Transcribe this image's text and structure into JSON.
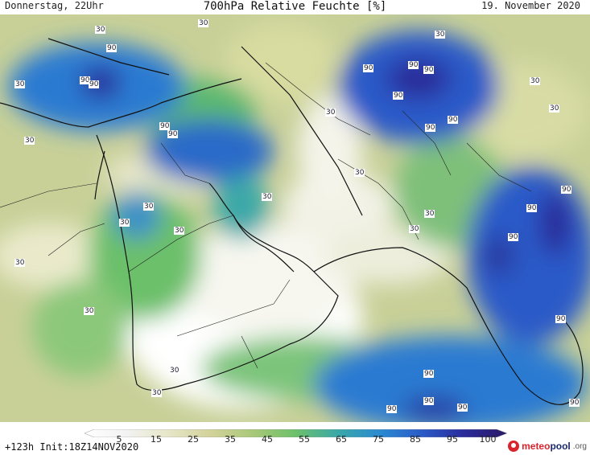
{
  "header": {
    "day_time": "Donnerstag, 22Uhr",
    "title": "700hPa Relative Feuchte [%]",
    "date": "19. November 2020"
  },
  "map": {
    "region": "Middle East / Arabian Peninsula",
    "contour_labels": [
      "30",
      "30",
      "90",
      "90",
      "90",
      "30",
      "30",
      "90",
      "90",
      "30",
      "90",
      "90",
      "30",
      "90",
      "90",
      "90",
      "30",
      "30",
      "30",
      "90",
      "90",
      "30",
      "30",
      "30",
      "90",
      "30",
      "30",
      "30",
      "90",
      "30",
      "30",
      "90",
      "90",
      "90",
      "90",
      "90",
      "90",
      "30",
      "30"
    ]
  },
  "colorbar": {
    "labels": [
      "5",
      "15",
      "25",
      "35",
      "45",
      "55",
      "65",
      "75",
      "85",
      "95",
      "100"
    ],
    "colors": [
      "#ffffff",
      "#f2f2f2",
      "#e6e6c8",
      "#d2d29a",
      "#a8c878",
      "#6cc06a",
      "#3aa8a8",
      "#2a8ad2",
      "#2a5ac8",
      "#2a2a9a",
      "#2a1a66"
    ]
  },
  "footer": {
    "run": "+123h Init:18Z14NOV2020",
    "brand_main": "meteo",
    "brand_pool": "pool",
    "brand_tld": ".org"
  }
}
